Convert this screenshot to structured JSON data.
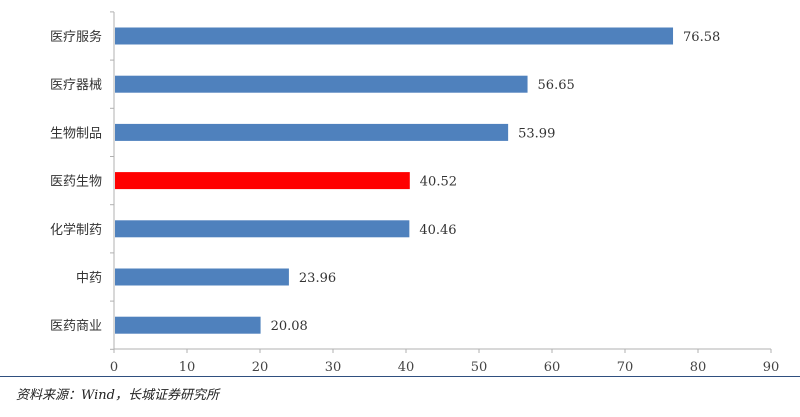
{
  "chart_data": {
    "type": "bar",
    "orientation": "horizontal",
    "categories": [
      "医疗服务",
      "医疗器械",
      "生物制品",
      "医药生物",
      "化学制药",
      "中药",
      "医药商业"
    ],
    "values": [
      76.58,
      56.65,
      53.99,
      40.52,
      40.46,
      23.96,
      20.08
    ],
    "value_labels": [
      "76.58",
      "56.65",
      "53.99",
      "40.52",
      "40.46",
      "23.96",
      "20.08"
    ],
    "highlight_index": 3,
    "xlim": [
      0,
      90
    ],
    "xticks": [
      0,
      10,
      20,
      30,
      40,
      50,
      60,
      70,
      80,
      90
    ],
    "grid": false,
    "colors": {
      "bar": "#4f81bd",
      "highlight": "#ff0000",
      "axis": "#b0b0b0"
    }
  },
  "source": "资料来源：Wind，长城证券研究所"
}
